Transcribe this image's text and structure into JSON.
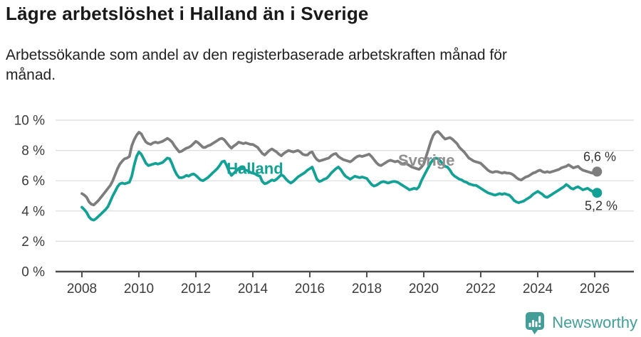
{
  "header": {
    "title": "Lägre arbetslöshet i Halland än i Sverige",
    "subtitle_line1": "Arbetssökande som andel av den registerbaserade arbetskraften månad för",
    "subtitle_line2": "månad."
  },
  "footer": {
    "brand": "Newsworthy",
    "logo_icon": "bar-chart-speech-bubble-icon"
  },
  "colors": {
    "halland": "#14a195",
    "sverige": "#7d7d7d",
    "sverige_label": "#8f8f8f",
    "axis": "#4d4d4d",
    "grid": "#dcdcdc",
    "tick_text": "#3c3c3c",
    "value_text": "#333333",
    "brand": "#429e96"
  },
  "chart_data": {
    "type": "line",
    "x_start_year": 2008,
    "x_step_months": 1,
    "xlabel": "",
    "ylabel": "",
    "ylim": [
      0,
      10
    ],
    "grid": "horizontal",
    "legend": "inline-labels",
    "x_ticks": [
      2008,
      2010,
      2012,
      2014,
      2016,
      2018,
      2020,
      2022,
      2024,
      2026
    ],
    "y_ticks": [
      {
        "value": 10,
        "label": "10 %"
      },
      {
        "value": 8,
        "label": "8 %"
      },
      {
        "value": 6,
        "label": "6 %"
      },
      {
        "value": 4,
        "label": "4 %"
      },
      {
        "value": 2,
        "label": "2 %"
      },
      {
        "value": 0,
        "label": "0 %"
      }
    ],
    "series": [
      {
        "id": "sverige",
        "name": "Sverige",
        "color": "#7d7d7d",
        "end_value_label": "6,6 %",
        "values": [
          5.15,
          5.05,
          4.9,
          4.6,
          4.45,
          4.4,
          4.55,
          4.7,
          4.9,
          5.1,
          5.3,
          5.5,
          5.7,
          6.0,
          6.4,
          6.8,
          7.1,
          7.3,
          7.45,
          7.5,
          7.6,
          8.3,
          8.7,
          9.0,
          9.2,
          9.1,
          8.8,
          8.55,
          8.45,
          8.4,
          8.5,
          8.55,
          8.5,
          8.55,
          8.6,
          8.7,
          8.8,
          8.7,
          8.55,
          8.3,
          8.1,
          7.9,
          7.95,
          8.05,
          8.15,
          8.2,
          8.3,
          8.45,
          8.6,
          8.5,
          8.35,
          8.2,
          8.2,
          8.3,
          8.35,
          8.45,
          8.55,
          8.65,
          8.75,
          8.8,
          8.7,
          8.5,
          8.3,
          8.15,
          8.3,
          8.4,
          8.55,
          8.5,
          8.45,
          8.5,
          8.45,
          8.4,
          8.4,
          8.3,
          8.2,
          8.0,
          7.8,
          7.7,
          7.85,
          8.0,
          8.1,
          8.0,
          7.9,
          7.75,
          7.65,
          7.8,
          7.9,
          8.0,
          7.95,
          7.9,
          7.95,
          8.0,
          7.9,
          7.75,
          7.7,
          7.7,
          7.85,
          7.9,
          7.6,
          7.4,
          7.3,
          7.35,
          7.4,
          7.45,
          7.5,
          7.65,
          7.75,
          7.8,
          7.6,
          7.5,
          7.4,
          7.35,
          7.3,
          7.25,
          7.35,
          7.5,
          7.6,
          7.65,
          7.6,
          7.65,
          7.7,
          7.75,
          7.6,
          7.4,
          7.2,
          7.05,
          7.0,
          7.1,
          7.2,
          7.3,
          7.35,
          7.3,
          7.25,
          7.3,
          7.2,
          7.1,
          7.15,
          7.1,
          7.0,
          6.9,
          6.85,
          6.8,
          6.75,
          6.9,
          7.1,
          7.6,
          8.1,
          8.6,
          9.0,
          9.2,
          9.25,
          9.1,
          8.9,
          8.75,
          8.8,
          8.85,
          8.75,
          8.6,
          8.45,
          8.2,
          8.05,
          7.9,
          7.7,
          7.5,
          7.4,
          7.3,
          7.25,
          7.2,
          7.15,
          7.0,
          6.85,
          6.7,
          6.6,
          6.55,
          6.6,
          6.6,
          6.55,
          6.5,
          6.55,
          6.5,
          6.5,
          6.45,
          6.35,
          6.2,
          6.1,
          6.05,
          6.15,
          6.25,
          6.3,
          6.4,
          6.5,
          6.55,
          6.65,
          6.7,
          6.6,
          6.55,
          6.6,
          6.55,
          6.6,
          6.65,
          6.7,
          6.75,
          6.85,
          6.9,
          6.95,
          7.05,
          6.95,
          6.85,
          6.9,
          6.95,
          6.8,
          6.7,
          6.65,
          6.6,
          6.55,
          6.5,
          6.55,
          6.6
        ]
      },
      {
        "id": "halland",
        "name": "Halland",
        "color": "#14a195",
        "end_value_label": "5,2 %",
        "values": [
          4.25,
          4.1,
          3.9,
          3.6,
          3.45,
          3.4,
          3.5,
          3.65,
          3.8,
          3.95,
          4.1,
          4.3,
          4.65,
          5.0,
          5.3,
          5.6,
          5.8,
          5.85,
          5.8,
          5.85,
          5.9,
          6.3,
          7.0,
          7.6,
          7.9,
          7.75,
          7.45,
          7.15,
          7.0,
          7.05,
          7.1,
          7.15,
          7.1,
          7.15,
          7.2,
          7.35,
          7.5,
          7.45,
          7.1,
          6.7,
          6.4,
          6.2,
          6.2,
          6.25,
          6.35,
          6.3,
          6.4,
          6.45,
          6.35,
          6.2,
          6.05,
          6.0,
          6.1,
          6.2,
          6.35,
          6.5,
          6.65,
          6.8,
          7.0,
          7.25,
          7.3,
          7.0,
          6.6,
          6.35,
          6.5,
          6.65,
          6.8,
          6.9,
          6.8,
          6.7,
          6.65,
          6.55,
          6.5,
          6.45,
          6.35,
          6.3,
          5.95,
          5.8,
          5.85,
          5.95,
          6.05,
          6.0,
          6.1,
          6.25,
          6.4,
          6.3,
          6.1,
          5.95,
          5.85,
          5.95,
          6.1,
          6.25,
          6.35,
          6.45,
          6.55,
          6.7,
          6.8,
          6.9,
          6.5,
          6.1,
          5.95,
          6.0,
          6.1,
          6.15,
          6.3,
          6.5,
          6.65,
          6.8,
          6.9,
          6.75,
          6.5,
          6.3,
          6.2,
          6.1,
          6.2,
          6.3,
          6.25,
          6.2,
          6.25,
          6.2,
          6.15,
          5.95,
          5.75,
          5.65,
          5.7,
          5.8,
          5.9,
          5.95,
          5.9,
          5.85,
          5.9,
          5.95,
          5.95,
          5.9,
          5.8,
          5.7,
          5.6,
          5.5,
          5.4,
          5.45,
          5.5,
          5.45,
          5.6,
          6.0,
          6.3,
          6.6,
          6.9,
          7.2,
          7.4,
          7.5,
          7.45,
          7.3,
          7.1,
          6.95,
          6.9,
          6.7,
          6.45,
          6.3,
          6.2,
          6.1,
          6.05,
          5.95,
          5.9,
          5.8,
          5.75,
          5.7,
          5.7,
          5.6,
          5.5,
          5.4,
          5.3,
          5.2,
          5.15,
          5.1,
          5.05,
          5.1,
          5.15,
          5.1,
          5.15,
          5.1,
          5.05,
          4.9,
          4.7,
          4.6,
          4.55,
          4.6,
          4.65,
          4.75,
          4.85,
          4.95,
          5.1,
          5.2,
          5.3,
          5.2,
          5.1,
          4.95,
          4.9,
          5.0,
          5.1,
          5.2,
          5.3,
          5.4,
          5.5,
          5.6,
          5.75,
          5.65,
          5.5,
          5.45,
          5.55,
          5.6,
          5.5,
          5.4,
          5.45,
          5.5,
          5.4,
          5.3,
          5.25,
          5.2
        ]
      }
    ],
    "annotations": [
      {
        "id": "halland-series-label",
        "text": "Halland",
        "x": 2013.08,
        "y": 6.45,
        "color": "#14a195",
        "bold": true,
        "size": 22
      },
      {
        "id": "sverige-series-label",
        "text": "Sverige",
        "x": 2019.1,
        "y": 7.0,
        "color": "#8f8f8f",
        "bold": true,
        "size": 22
      },
      {
        "id": "sverige-end-value",
        "text": "6,6 %",
        "x": 2025.6,
        "y": 7.3,
        "color": "#333333",
        "bold": false,
        "size": 18
      },
      {
        "id": "halland-end-value",
        "text": "5,2 %",
        "x": 2025.65,
        "y": 4.05,
        "color": "#333333",
        "bold": false,
        "size": 18
      }
    ]
  }
}
